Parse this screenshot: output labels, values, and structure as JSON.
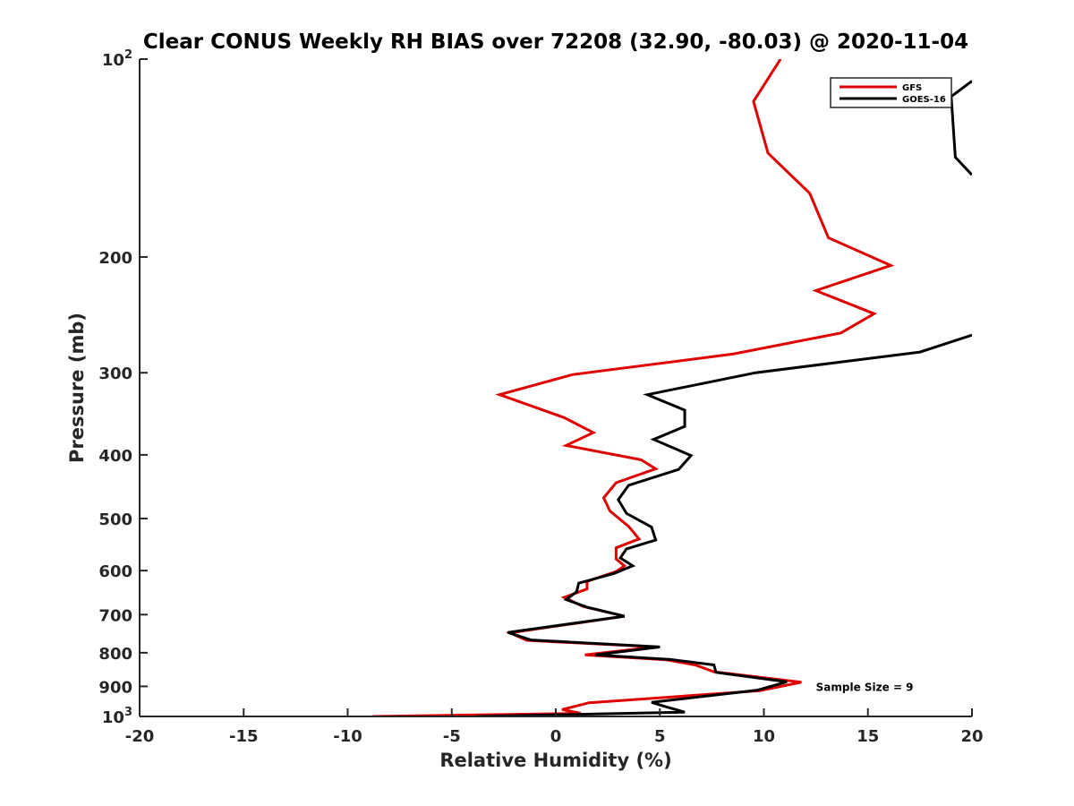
{
  "chart_data": {
    "type": "line",
    "title": "Clear CONUS Weekly RH BIAS over 72208 (32.90, -80.03) @ 2020-11-04",
    "xlabel": "Relative Humidity (%)",
    "ylabel": "Pressure (mb)",
    "xlim": [
      -20,
      20
    ],
    "ylim": [
      100,
      1000
    ],
    "yscale": "log",
    "y_reversed": true,
    "grid": false,
    "legend_position": "top-right",
    "x_ticks": [
      "-20",
      "-15",
      "-10",
      "-5",
      "0",
      "5",
      "10",
      "15",
      "20"
    ],
    "y_ticks": [
      {
        "value": 100,
        "label": "10",
        "sup": "2"
      },
      {
        "value": 200,
        "label": "200",
        "sup": ""
      },
      {
        "value": 300,
        "label": "300",
        "sup": ""
      },
      {
        "value": 400,
        "label": "400",
        "sup": ""
      },
      {
        "value": 500,
        "label": "500",
        "sup": ""
      },
      {
        "value": 600,
        "label": "600",
        "sup": ""
      },
      {
        "value": 700,
        "label": "700",
        "sup": ""
      },
      {
        "value": 800,
        "label": "800",
        "sup": ""
      },
      {
        "value": 900,
        "label": "900",
        "sup": ""
      },
      {
        "value": 1000,
        "label": "10",
        "sup": "3"
      }
    ],
    "series": [
      {
        "name": "GFS",
        "color": "#e00000",
        "points": [
          [
            10.8,
            100
          ],
          [
            9.5,
            116
          ],
          [
            10.2,
            139
          ],
          [
            12.2,
            160
          ],
          [
            13.1,
            187
          ],
          [
            16.1,
            206
          ],
          [
            12.5,
            225
          ],
          [
            15.3,
            244
          ],
          [
            13.7,
            261
          ],
          [
            8.5,
            281
          ],
          [
            0.8,
            302
          ],
          [
            -2.7,
            324
          ],
          [
            0.4,
            351
          ],
          [
            1.8,
            370
          ],
          [
            0.5,
            387
          ],
          [
            4.1,
            407
          ],
          [
            4.8,
            420
          ],
          [
            2.9,
            441
          ],
          [
            2.3,
            465
          ],
          [
            2.6,
            487
          ],
          [
            3.5,
            514
          ],
          [
            4.0,
            537
          ],
          [
            2.9,
            554
          ],
          [
            2.9,
            576
          ],
          [
            3.3,
            590
          ],
          [
            2.9,
            602
          ],
          [
            1.5,
            623
          ],
          [
            1.5,
            640
          ],
          [
            0.4,
            659
          ],
          [
            1.3,
            680
          ],
          [
            3.3,
            704
          ],
          [
            -2.2,
            746
          ],
          [
            -1.4,
            766
          ],
          [
            4.8,
            784
          ],
          [
            1.4,
            806
          ],
          [
            5.3,
            820
          ],
          [
            6.7,
            835
          ],
          [
            7.6,
            855
          ],
          [
            11.8,
            887
          ],
          [
            9.8,
            914
          ],
          [
            1.6,
            953
          ],
          [
            0.3,
            976
          ],
          [
            1.2,
            989
          ],
          [
            -8.8,
            1000
          ]
        ]
      },
      {
        "name": "GOES-16",
        "color": "#000000",
        "points": [
          [
            20.0,
            108
          ],
          [
            19.0,
            114
          ],
          [
            19.2,
            141
          ],
          [
            20.0,
            150
          ],
          null,
          [
            20.0,
            263
          ],
          [
            17.5,
            279
          ],
          [
            9.6,
            300
          ],
          [
            4.4,
            324
          ],
          [
            6.2,
            342
          ],
          [
            6.2,
            362
          ],
          [
            4.7,
            379
          ],
          [
            6.5,
            401
          ],
          [
            5.9,
            421
          ],
          [
            3.5,
            445
          ],
          [
            3.0,
            468
          ],
          [
            3.4,
            491
          ],
          [
            4.6,
            515
          ],
          [
            4.8,
            539
          ],
          [
            3.4,
            556
          ],
          [
            3.1,
            574
          ],
          [
            3.7,
            590
          ],
          [
            2.8,
            606
          ],
          [
            1.1,
            627
          ],
          [
            1.0,
            646
          ],
          [
            0.5,
            664
          ],
          [
            1.5,
            682
          ],
          [
            3.3,
            704
          ],
          [
            -2.3,
            745
          ],
          [
            -1.2,
            765
          ],
          [
            5.0,
            784
          ],
          [
            1.9,
            806
          ],
          [
            5.5,
            819
          ],
          [
            7.6,
            835
          ],
          [
            7.7,
            857
          ],
          [
            11.1,
            886
          ],
          [
            9.7,
            912
          ],
          [
            4.6,
            952
          ],
          [
            5.2,
            965
          ],
          [
            6.2,
            985
          ],
          [
            -3.8,
            1000
          ]
        ]
      }
    ],
    "annotations": [
      {
        "text": "Sample Size = 9",
        "x": 12.5,
        "y": 900
      }
    ]
  }
}
